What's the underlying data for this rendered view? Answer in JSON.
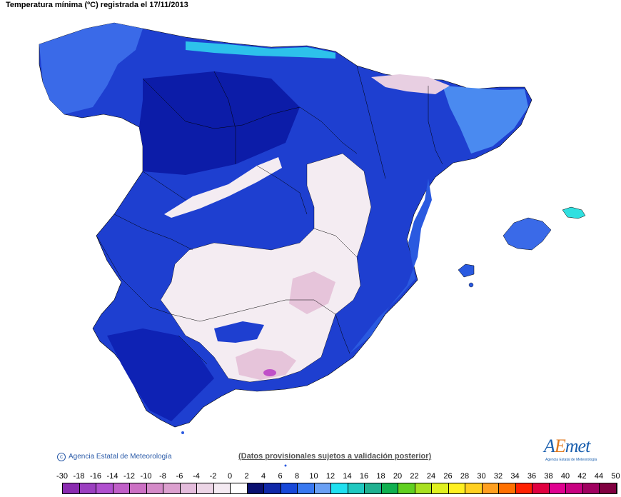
{
  "title": "Temperatura mínima (ºC) registrada el 17/11/2013",
  "credit": "Agencia Estatal de Meteorología",
  "notice": "(Datos provisionales sujetos a validación posterior)",
  "logo": {
    "word_a": "A",
    "word_e": "E",
    "word_b": "met",
    "sub": "Agencia Estatal de Meteorología"
  },
  "legend": {
    "labels": [
      "-30",
      "-18",
      "-16",
      "-14",
      "-12",
      "-10",
      "-8",
      "-6",
      "-4",
      "-2",
      "0",
      "2",
      "4",
      "6",
      "8",
      "10",
      "12",
      "14",
      "16",
      "18",
      "20",
      "22",
      "24",
      "26",
      "28",
      "30",
      "32",
      "34",
      "36",
      "38",
      "40",
      "42",
      "44",
      "50"
    ],
    "colors": [
      "#8a2bb0",
      "#9b3fc0",
      "#b04fcf",
      "#c05fc8",
      "#cc70c4",
      "#d48ac8",
      "#dca0cf",
      "#e4bcdc",
      "#ecd5e6",
      "#f4eaf2",
      "#ffffff",
      "#0a1070",
      "#1028a8",
      "#1848d8",
      "#3878f0",
      "#6aa0f4",
      "#20e0f0",
      "#20c8c0",
      "#20b090",
      "#10b050",
      "#60d020",
      "#a8e020",
      "#e0f020",
      "#fff020",
      "#ffd020",
      "#ffa020",
      "#ff7000",
      "#ff2000",
      "#e00040",
      "#e00090",
      "#c80080",
      "#a00060",
      "#800040"
    ]
  },
  "map": {
    "colors": {
      "sea": "#ffffff",
      "coast_blue": "#1e3fd0",
      "deep_blue": "#0a1aa8",
      "mid_blue": "#2a5ae0",
      "light_blue": "#4a7cf0",
      "cyan": "#30e0f0",
      "cold_white": "#f4ecf2",
      "pink": "#e6bfd8",
      "magenta": "#c050c8",
      "border": "#000000"
    }
  }
}
